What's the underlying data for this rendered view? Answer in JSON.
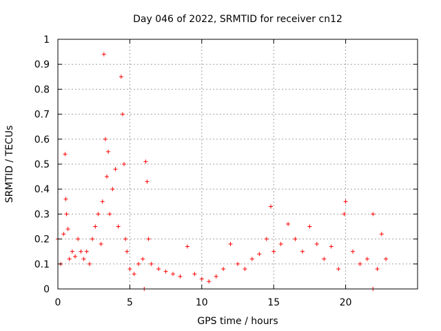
{
  "chart_data": {
    "type": "scatter",
    "title": "Day 046 of 2022, SRMTID for receiver cn12",
    "xlabel": "GPS time / hours",
    "ylabel": "SRMTID / TECUs",
    "xlim": [
      0,
      25
    ],
    "ylim": [
      0,
      1
    ],
    "xticks": [
      0,
      5,
      10,
      15,
      20
    ],
    "xtick_labels": [
      "0",
      "5",
      "10",
      "15",
      "20"
    ],
    "yticks": [
      0,
      0.1,
      0.2,
      0.3,
      0.4,
      0.5,
      0.6,
      0.7,
      0.8,
      0.9,
      1
    ],
    "ytick_labels": [
      "0",
      "0.1",
      "0.2",
      "0.3",
      "0.4",
      "0.5",
      "0.6",
      "0.7",
      "0.8",
      "0.9",
      "1"
    ],
    "grid": true,
    "marker": "plus",
    "color": "#ff0000",
    "series": [
      {
        "name": "cn12",
        "x": [
          0.0,
          0.2,
          0.4,
          0.5,
          0.55,
          0.6,
          0.7,
          0.8,
          1.0,
          1.2,
          1.4,
          1.6,
          1.8,
          2.0,
          2.2,
          2.4,
          2.6,
          2.8,
          3.0,
          3.1,
          3.2,
          3.3,
          3.4,
          3.5,
          3.6,
          3.8,
          4.0,
          4.2,
          4.4,
          4.5,
          4.6,
          4.7,
          4.8,
          5.0,
          5.3,
          5.6,
          5.9,
          6.1,
          6.2,
          6.3,
          6.5,
          7.0,
          7.5,
          8.0,
          8.5,
          9.0,
          9.5,
          10.0,
          10.5,
          11.0,
          11.5,
          12.0,
          12.5,
          13.0,
          13.5,
          14.0,
          14.5,
          14.8,
          15.0,
          15.5,
          16.0,
          16.5,
          17.0,
          17.5,
          18.0,
          18.5,
          19.0,
          19.5,
          19.9,
          20.0,
          20.5,
          21.0,
          21.5,
          21.9,
          22.2,
          22.5,
          22.8,
          6.0,
          21.9
        ],
        "y": [
          0.2,
          0.1,
          0.22,
          0.54,
          0.36,
          0.3,
          0.24,
          0.12,
          0.15,
          0.13,
          0.2,
          0.15,
          0.12,
          0.15,
          0.1,
          0.2,
          0.25,
          0.3,
          0.18,
          0.35,
          0.94,
          0.6,
          0.45,
          0.55,
          0.3,
          0.4,
          0.48,
          0.25,
          0.85,
          0.7,
          0.5,
          0.2,
          0.15,
          0.08,
          0.06,
          0.1,
          0.12,
          0.51,
          0.43,
          0.2,
          0.1,
          0.08,
          0.07,
          0.06,
          0.05,
          0.17,
          0.06,
          0.04,
          0.03,
          0.05,
          0.08,
          0.18,
          0.1,
          0.08,
          0.12,
          0.14,
          0.2,
          0.33,
          0.15,
          0.18,
          0.26,
          0.2,
          0.15,
          0.25,
          0.18,
          0.12,
          0.17,
          0.08,
          0.3,
          0.35,
          0.15,
          0.1,
          0.12,
          0.3,
          0.08,
          0.22,
          0.12,
          0.0,
          0.0
        ]
      }
    ]
  }
}
